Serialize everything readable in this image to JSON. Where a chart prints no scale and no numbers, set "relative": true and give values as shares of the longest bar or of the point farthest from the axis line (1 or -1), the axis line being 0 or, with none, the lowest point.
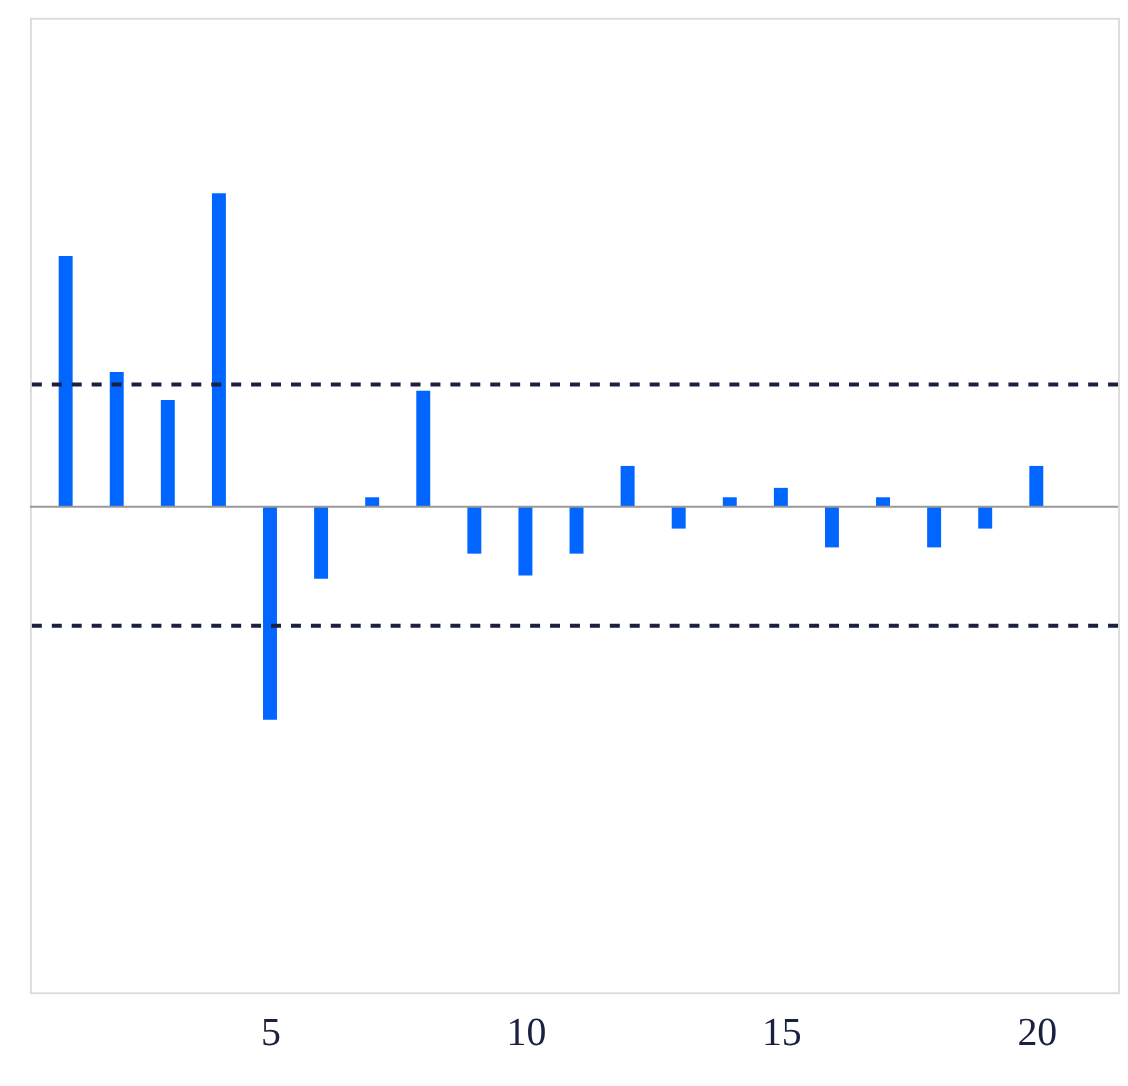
{
  "chart_data": {
    "type": "bar",
    "relative": true,
    "x": [
      1,
      2,
      3,
      4,
      5,
      6,
      7,
      8,
      9,
      10,
      11,
      12,
      13,
      14,
      15,
      16,
      17,
      18,
      19,
      20
    ],
    "values": [
      0.8,
      0.43,
      0.34,
      1,
      -0.68,
      -0.23,
      0.03,
      0.37,
      -0.15,
      -0.22,
      -0.15,
      0.13,
      -0.07,
      0.03,
      0.06,
      -0.13,
      0.03,
      -0.13,
      -0.07,
      0.13
    ],
    "color": "#0066ff",
    "xlim": [
      0.3,
      21.6
    ],
    "xticks": [
      5,
      10,
      15,
      20
    ],
    "ref_lines": [
      {
        "axis": "y",
        "value": 0.39,
        "color": "#1a2040",
        "line_style": "dashed"
      },
      {
        "axis": "y",
        "value": -0.38,
        "color": "#1a2040",
        "line_style": "dashed"
      }
    ],
    "grid": false
  }
}
